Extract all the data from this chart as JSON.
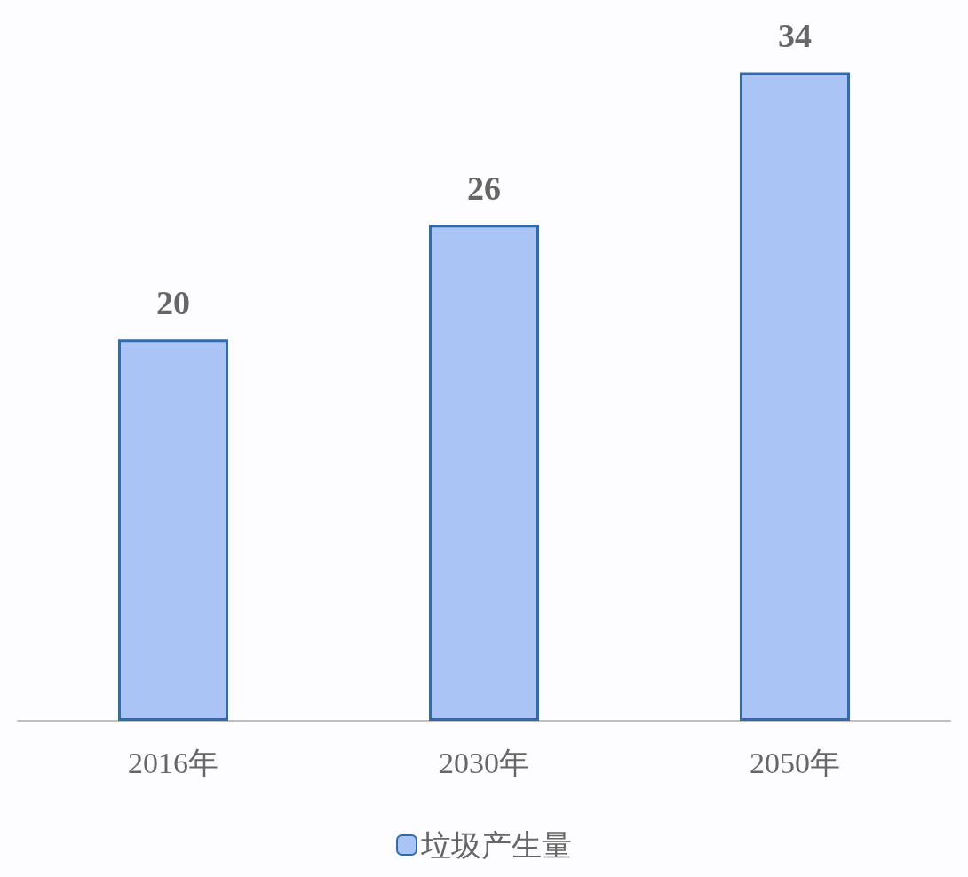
{
  "chart_data": {
    "type": "bar",
    "categories": [
      "2016年",
      "2030年",
      "2050年"
    ],
    "series": [
      {
        "name": "垃圾产生量",
        "color": "#a9c4f5",
        "values": [
          20,
          26,
          34
        ]
      }
    ],
    "data_labels": true,
    "legend": "bottom",
    "grid": false
  }
}
